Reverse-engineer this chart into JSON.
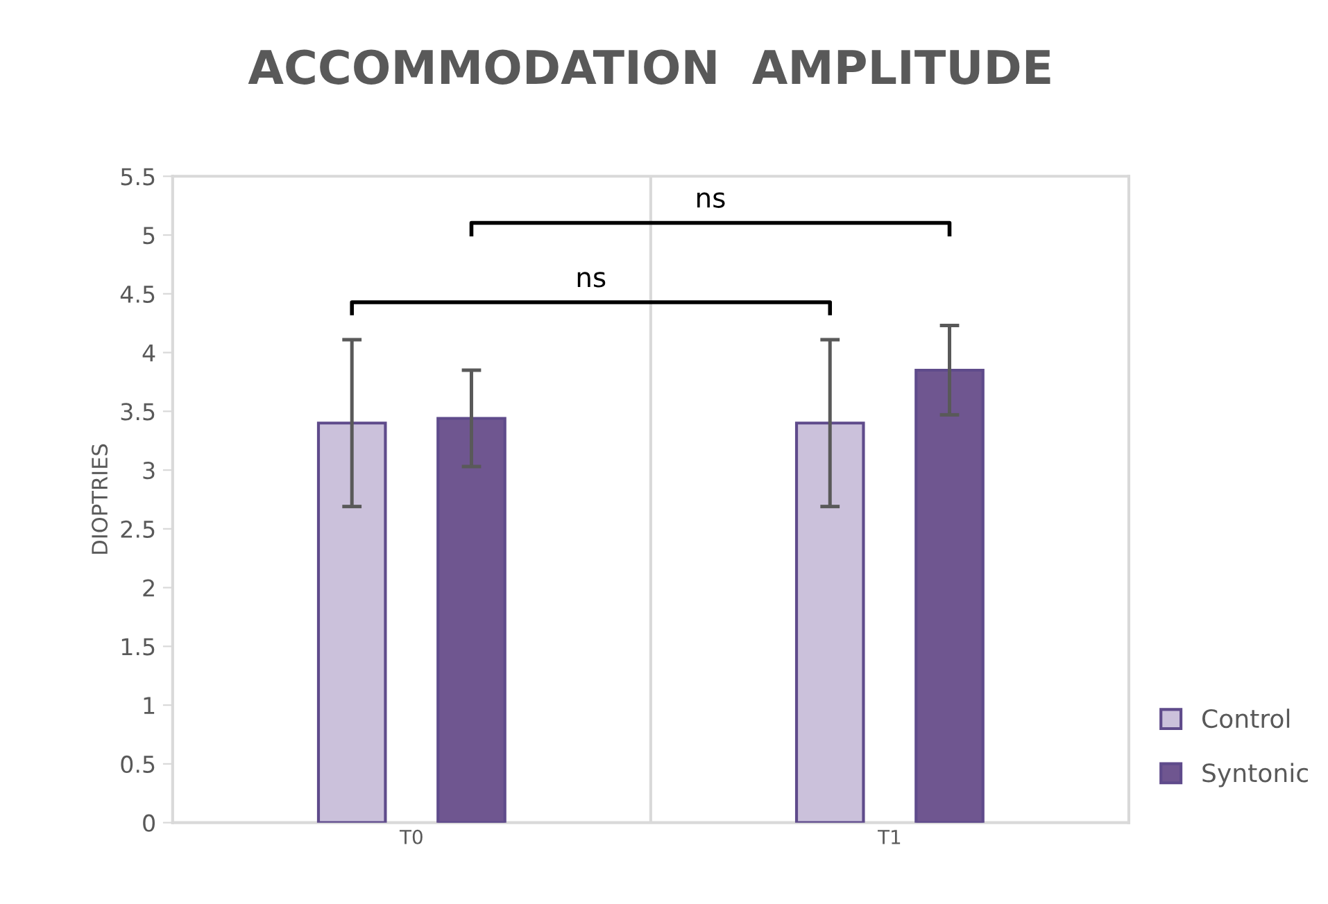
{
  "chart_data": {
    "type": "bar",
    "title": "ACCOMMODATION  AMPLITUDE",
    "ylabel": "DIOPTRIES",
    "categories": [
      "T0",
      "T1"
    ],
    "series": [
      {
        "name": "Control",
        "color": "#cbc1db",
        "values": [
          3.4,
          3.4
        ],
        "errors": [
          0.71,
          0.71
        ]
      },
      {
        "name": "Syntonic",
        "color": "#6f5690",
        "values": [
          3.44,
          3.85
        ],
        "errors": [
          0.41,
          0.38
        ]
      }
    ],
    "ylim": [
      0,
      5.5
    ],
    "yticks": [
      0,
      0.5,
      1,
      1.5,
      2,
      2.5,
      3,
      3.5,
      4,
      4.5,
      5,
      5.5
    ],
    "grid": false,
    "legend": "right",
    "annotations": [
      "ns",
      "ns"
    ]
  }
}
